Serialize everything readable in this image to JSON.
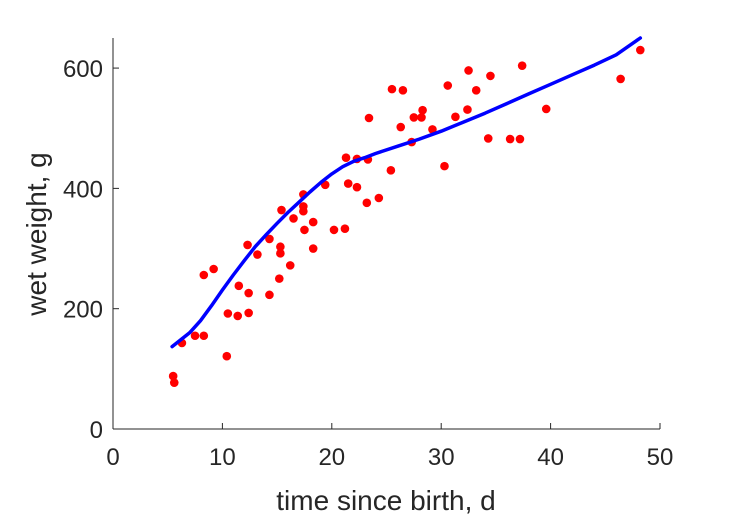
{
  "chart_data": {
    "type": "scatter",
    "xlabel": "time since birth, d",
    "ylabel": "wet weight, g",
    "xlim": [
      0,
      50
    ],
    "ylim": [
      0,
      650
    ],
    "x_ticks": [
      "0",
      "10",
      "20",
      "30",
      "40",
      "50"
    ],
    "y_ticks": [
      "0",
      "200",
      "400",
      "600"
    ],
    "grid": false,
    "colors": {
      "points": "#ff0000",
      "fit": "#0000ff",
      "axis": "#262626"
    },
    "series": [
      {
        "type": "scatter",
        "points": [
          [
            5.5,
            88
          ],
          [
            5.6,
            77
          ],
          [
            6.3,
            143
          ],
          [
            7.5,
            155
          ],
          [
            8.3,
            155
          ],
          [
            8.3,
            256
          ],
          [
            9.2,
            266
          ],
          [
            10.4,
            121
          ],
          [
            10.5,
            192
          ],
          [
            11.4,
            188
          ],
          [
            11.5,
            238
          ],
          [
            12.3,
            306
          ],
          [
            12.4,
            226
          ],
          [
            12.4,
            193
          ],
          [
            13.2,
            290
          ],
          [
            14.3,
            316
          ],
          [
            14.3,
            223
          ],
          [
            15.2,
            250
          ],
          [
            15.3,
            292
          ],
          [
            15.3,
            303
          ],
          [
            15.4,
            364
          ],
          [
            16.2,
            272
          ],
          [
            16.5,
            350
          ],
          [
            17.4,
            390
          ],
          [
            17.4,
            370
          ],
          [
            17.4,
            362
          ],
          [
            17.5,
            331
          ],
          [
            18.3,
            344
          ],
          [
            18.3,
            300
          ],
          [
            19.4,
            406
          ],
          [
            20.2,
            331
          ],
          [
            21.2,
            333
          ],
          [
            21.3,
            451
          ],
          [
            21.5,
            408
          ],
          [
            22.3,
            449
          ],
          [
            22.3,
            402
          ],
          [
            23.2,
            376
          ],
          [
            23.3,
            448
          ],
          [
            23.4,
            517
          ],
          [
            24.3,
            384
          ],
          [
            25.4,
            430
          ],
          [
            25.5,
            565
          ],
          [
            26.3,
            502
          ],
          [
            26.5,
            563
          ],
          [
            27.3,
            477
          ],
          [
            27.5,
            518
          ],
          [
            28.2,
            518
          ],
          [
            28.3,
            530
          ],
          [
            29.2,
            498
          ],
          [
            30.3,
            437
          ],
          [
            30.6,
            571
          ],
          [
            31.3,
            519
          ],
          [
            32.4,
            531
          ],
          [
            32.5,
            596
          ],
          [
            33.2,
            563
          ],
          [
            34.3,
            483
          ],
          [
            34.5,
            587
          ],
          [
            36.3,
            482
          ],
          [
            37.2,
            482
          ],
          [
            37.4,
            604
          ],
          [
            39.6,
            532
          ],
          [
            46.4,
            582
          ],
          [
            48.2,
            630
          ]
        ]
      },
      {
        "type": "line",
        "points": [
          [
            5.4,
            137
          ],
          [
            7,
            160
          ],
          [
            8,
            180
          ],
          [
            9,
            205
          ],
          [
            10,
            231
          ],
          [
            11,
            256
          ],
          [
            12,
            280
          ],
          [
            13,
            303
          ],
          [
            14,
            323
          ],
          [
            15,
            342
          ],
          [
            16,
            360
          ],
          [
            17,
            377
          ],
          [
            18,
            394
          ],
          [
            19,
            410
          ],
          [
            20,
            424
          ],
          [
            21,
            436
          ],
          [
            22,
            445
          ],
          [
            23,
            451
          ],
          [
            24,
            458
          ],
          [
            26,
            470
          ],
          [
            28,
            482
          ],
          [
            30,
            495
          ],
          [
            32,
            510
          ],
          [
            34,
            525
          ],
          [
            36,
            541
          ],
          [
            38,
            557
          ],
          [
            40,
            573
          ],
          [
            42,
            589
          ],
          [
            44,
            605
          ],
          [
            46,
            622
          ],
          [
            48.2,
            650
          ]
        ]
      }
    ]
  }
}
